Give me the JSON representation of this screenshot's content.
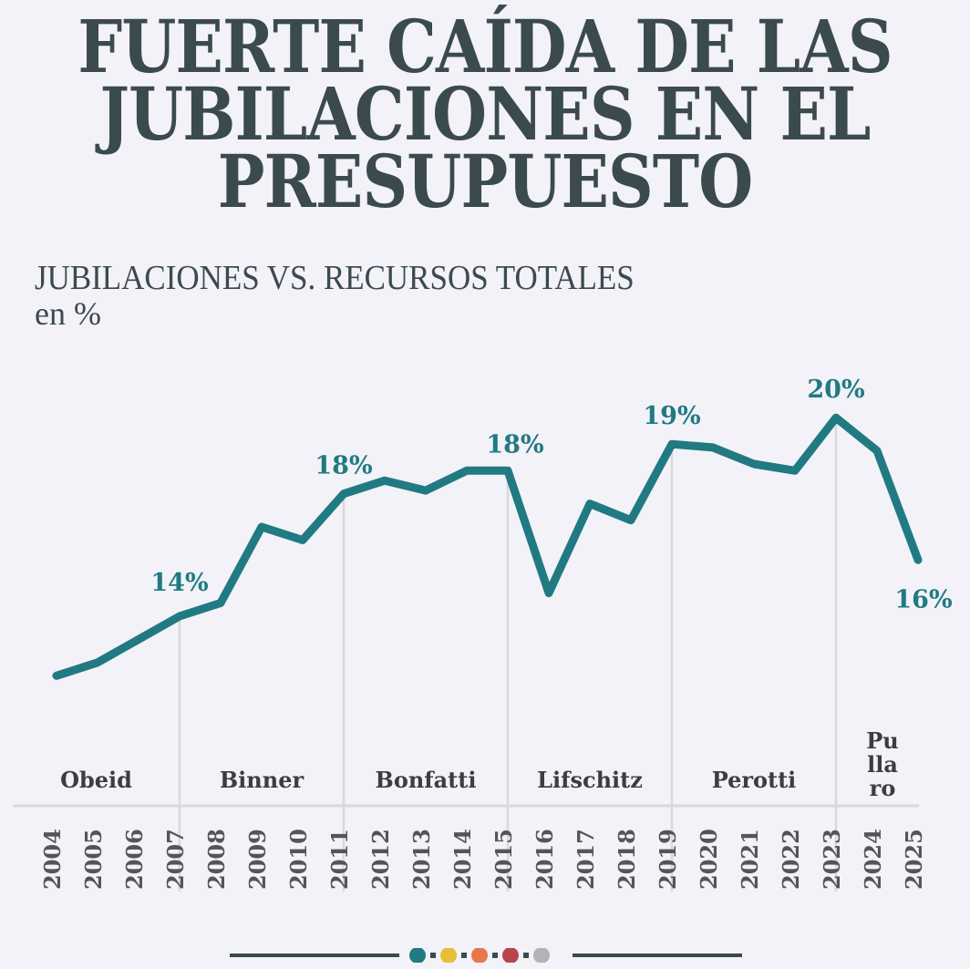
{
  "header": {
    "title_lines": [
      "FUERTE CAÍDA DE LAS",
      "JUBILACIONES EN EL",
      "PRESUPUESTO"
    ],
    "subtitle": "JUBILACIONES VS. RECURSOS TOTALES",
    "unit": "en %"
  },
  "colors": {
    "line": "#217a82",
    "text": "#3b4a4d",
    "grid": "#d9d9d9",
    "background": "#f2f2f8",
    "legend_dots": [
      "#217a82",
      "#e6bf37",
      "#e6784a",
      "#b8454e",
      "#b3b3b3"
    ]
  },
  "chart_data": {
    "type": "line",
    "title": "JUBILACIONES VS. RECURSOS TOTALES",
    "ylabel": "en %",
    "xlabel": "",
    "x": [
      "2004",
      "2005",
      "2006",
      "2007",
      "2008",
      "2009",
      "2010",
      "2011",
      "2012",
      "2013",
      "2014",
      "2015",
      "2016",
      "2017",
      "2018",
      "2019",
      "2020",
      "2021",
      "2022",
      "2023",
      "2024",
      "2025"
    ],
    "series": [
      {
        "name": "Jubilaciones vs. recursos totales",
        "values": [
          12.2,
          12.6,
          13.3,
          14.0,
          14.4,
          16.7,
          16.3,
          17.7,
          18.1,
          17.8,
          18.4,
          18.4,
          14.7,
          17.4,
          16.9,
          19.2,
          19.1,
          18.6,
          18.4,
          20.0,
          19.0,
          15.7
        ]
      }
    ],
    "ylim": [
      10,
      21
    ],
    "grid": false,
    "annotations": [
      {
        "year": "2007",
        "label": "14%",
        "position": "above"
      },
      {
        "year": "2011",
        "label": "18%",
        "position": "above"
      },
      {
        "year": "2015",
        "label": "18%",
        "position": "above-right"
      },
      {
        "year": "2019",
        "label": "19%",
        "position": "above"
      },
      {
        "year": "2023",
        "label": "20%",
        "position": "above"
      },
      {
        "year": "2025",
        "label": "16%",
        "position": "below"
      }
    ],
    "periods": [
      {
        "name": "Obeid",
        "start": "2004",
        "end": "2007"
      },
      {
        "name": "Binner",
        "start": "2008",
        "end": "2011"
      },
      {
        "name": "Bonfatti",
        "start": "2012",
        "end": "2015"
      },
      {
        "name": "Lifschitz",
        "start": "2016",
        "end": "2019"
      },
      {
        "name": "Perotti",
        "start": "2020",
        "end": "2023"
      },
      {
        "name": "Pullaro",
        "start": "2024",
        "end": "2025",
        "display_lines": [
          "Pu",
          "lla",
          "ro"
        ]
      }
    ]
  }
}
